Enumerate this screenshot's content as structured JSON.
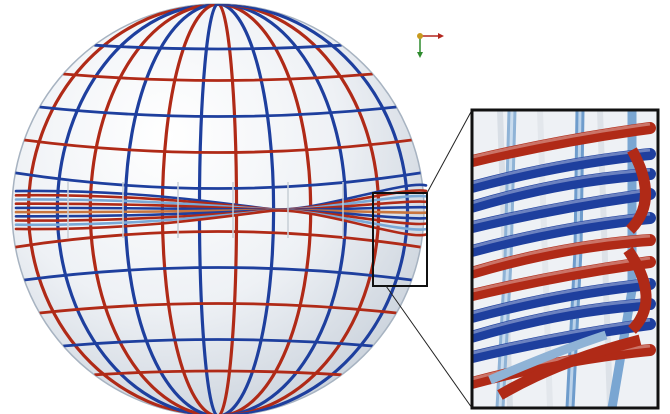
{
  "figure": {
    "description_free": true,
    "colors": {
      "red": "#b02a17",
      "dark_blue": "#1e3f9e",
      "light_blue": "#7aa9d6",
      "orange": "#c8753e",
      "glass_fill": "#eef2f6",
      "glass_edge": "#9aa8b8",
      "frame": "#111111",
      "axis_red": "#b3261e",
      "axis_green": "#2e8b2e",
      "axis_origin": "#c89a1e"
    },
    "icons": {
      "axes_gizmo": "axes-gizmo-icon"
    }
  }
}
